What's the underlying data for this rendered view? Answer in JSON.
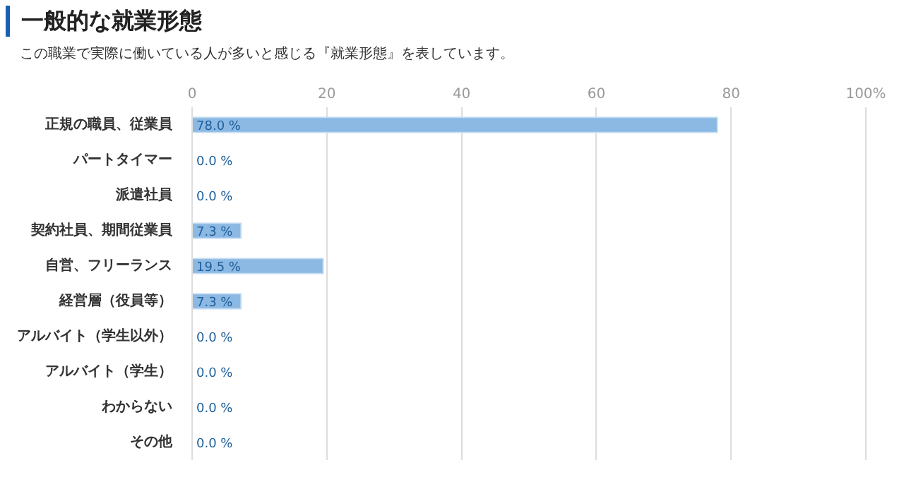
{
  "chart_data": {
    "type": "bar",
    "orientation": "horizontal",
    "title": "一般的な就業形態",
    "subtitle": "この職業で実際に働いている人が多いと感じる『就業形態』を表しています。",
    "categories": [
      "正規の職員、従業員",
      "パートタイマー",
      "派遣社員",
      "契約社員、期間従業員",
      "自営、フリーランス",
      "経営層（役員等）",
      "アルバイト（学生以外）",
      "アルバイト（学生）",
      "わからない",
      "その他"
    ],
    "values": [
      78.0,
      0.0,
      0.0,
      7.3,
      19.5,
      7.3,
      0.0,
      0.0,
      0.0,
      0.0
    ],
    "value_labels": [
      "78.0 %",
      "0.0 %",
      "0.0 %",
      "7.3 %",
      "19.5 %",
      "7.3 %",
      "0.0 %",
      "0.0 %",
      "0.0 %",
      "0.0 %"
    ],
    "color": "#8cb9e3",
    "xlim": [
      0,
      100
    ],
    "xticks": [
      0,
      20,
      40,
      60,
      80,
      {
        "value": 100,
        "label": "100%"
      }
    ],
    "grid": "x"
  }
}
